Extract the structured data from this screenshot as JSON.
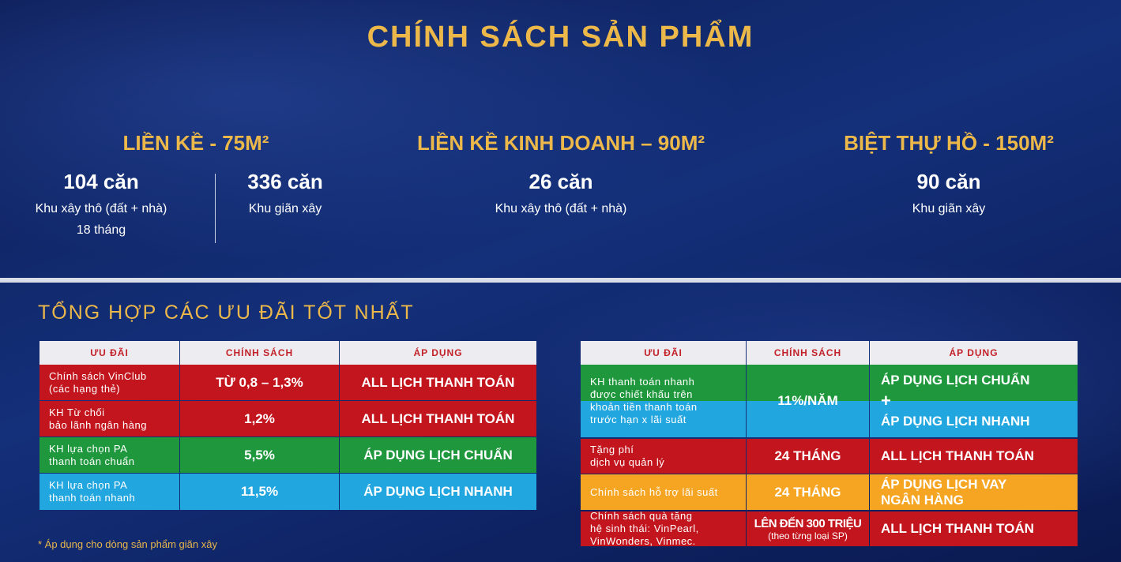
{
  "header": {
    "title": "CHÍNH SÁCH SẢN PHẨM"
  },
  "products": [
    {
      "name": "LIỀN KỀ - 75M²",
      "groups": [
        {
          "count": "104 căn",
          "desc": "Khu xây thô (đất + nhà)\n18 tháng"
        },
        {
          "count": "336 căn",
          "desc": "Khu giãn xây"
        }
      ]
    },
    {
      "name": "LIỀN KỀ KINH DOANH – 90M²",
      "groups": [
        {
          "count": "26 căn",
          "desc": "Khu xây thô (đất + nhà)"
        }
      ]
    },
    {
      "name": "BIỆT THỰ HỒ - 150M²",
      "groups": [
        {
          "count": "90 căn",
          "desc": "Khu giãn xây"
        }
      ]
    }
  ],
  "offers": {
    "title": "TỔNG HỢP CÁC ƯU ĐÃI TỐT NHẤT",
    "footnote": "* Áp dụng cho dòng sản phẩm giãn xây",
    "tables": [
      {
        "columns": [
          "ƯU ĐÃI",
          "CHÍNH SÁCH",
          "ÁP DỤNG"
        ],
        "rows": [
          [
            "Chính sách VinClub\n(các hạng thẻ)",
            "TỪ 0,8 – 1,3%",
            "ALL LỊCH THANH TOÁN"
          ],
          [
            "KH Từ chối\nbảo lãnh ngân hàng",
            "1,2%",
            "ALL LỊCH THANH TOÁN"
          ],
          [
            "KH lựa chọn PA\nthanh toán chuẩn",
            "5,5%",
            "ÁP DỤNG LỊCH CHUẨN"
          ],
          [
            "KH lựa chọn PA\nthanh toán nhanh",
            "11,5%",
            "ÁP DỤNG LỊCH NHANH"
          ]
        ]
      },
      {
        "columns": [
          "ƯU ĐÃI",
          "CHÍNH SÁCH",
          "ÁP DỤNG"
        ],
        "rows": [
          [
            "KH thanh toán nhanh\nđược chiết khấu trên\nkhoản tiền thanh toán\ntrước hạn x lãi suất",
            "11%/NĂM",
            [
              "ÁP DỤNG LỊCH CHUẨN",
              "+",
              "ÁP DỤNG LỊCH NHANH"
            ]
          ],
          [
            "Tặng phí\ndịch vụ quản lý",
            "24 THÁNG",
            "ALL LỊCH THANH TOÁN"
          ],
          [
            "Chính sách hỗ trợ lãi suất",
            "24 THÁNG",
            "ÁP DỤNG LỊCH VAY\nNGÂN HÀNG"
          ],
          [
            "Chính sách quà tặng\nhệ sinh thái: VinPearl,\nVinWonders, Vinmec.",
            [
              "LÊN ĐẾN 300 TRIỆU",
              "(theo từng loại SP)"
            ],
            "ALL LỊCH THANH TOÁN"
          ]
        ]
      }
    ]
  }
}
